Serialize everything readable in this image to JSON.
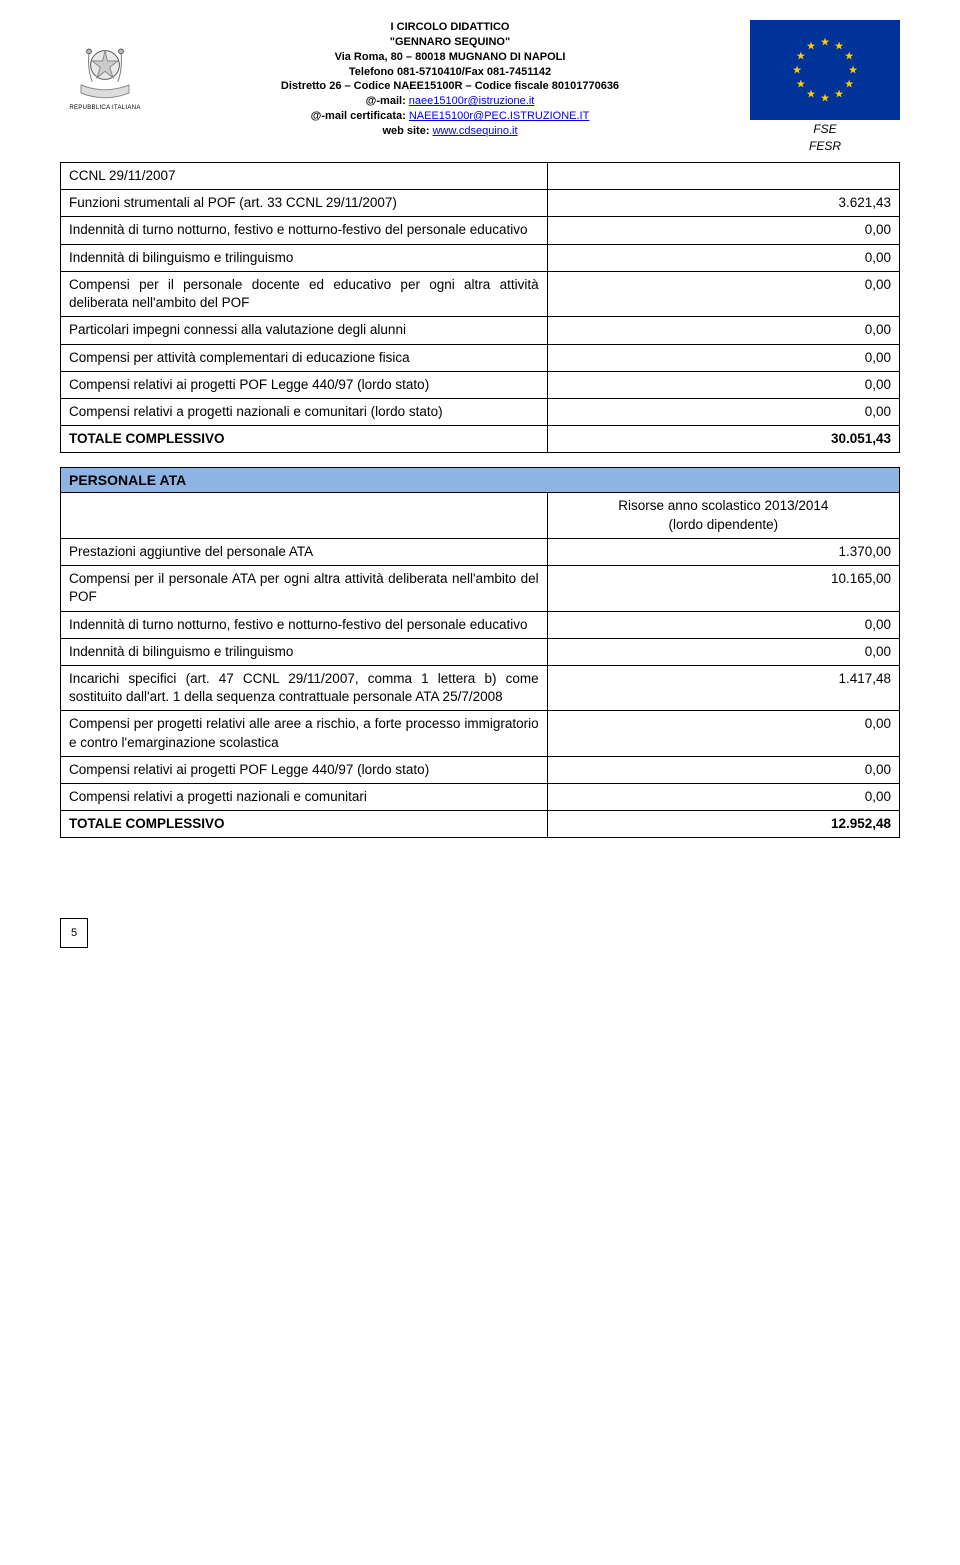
{
  "header": {
    "line1": "I CIRCOLO DIDATTICO",
    "line2": "\"GENNARO SEQUINO\"",
    "line3": "Via Roma, 80 – 80018 MUGNANO DI NAPOLI",
    "line4": "Telefono 081-5710410/Fax 081-7451142",
    "line5": "Distretto 26 – Codice NAEE15100R – Codice fiscale 80101770636",
    "mail_label": "@-mail: ",
    "mail_link": "naee15100r@istruzione.it",
    "mail_cert_label": "@-mail certificata: ",
    "mail_cert_link": "NAEE15100r@PEC.ISTRUZIONE.IT",
    "web_label": "web site: ",
    "web_link": "www.cdsequino.it",
    "fse1": "FSE",
    "fse2": "FESR",
    "emblem_text": "REPUBBLICA ITALIANA"
  },
  "table1": {
    "rows": [
      {
        "label": "CCNL 29/11/2007",
        "val": ""
      },
      {
        "label": "Funzioni strumentali al POF (art. 33 CCNL 29/11/2007)",
        "val": "3.621,43"
      },
      {
        "label": "Indennità di turno notturno, festivo e notturno-festivo del personale educativo",
        "val": "0,00"
      },
      {
        "label": "Indennità di bilinguismo e trilinguismo",
        "val": "0,00"
      },
      {
        "label": "Compensi per il personale docente ed educativo per ogni altra attività deliberata nell'ambito del POF",
        "val": "0,00"
      },
      {
        "label": "Particolari impegni connessi alla valutazione degli alunni",
        "val": "0,00"
      },
      {
        "label": "Compensi per attività complementari di educazione fisica",
        "val": "0,00"
      },
      {
        "label": "Compensi relativi ai progetti POF Legge 440/97 (lordo stato)",
        "val": "0,00"
      },
      {
        "label": "Compensi relativi a progetti nazionali e comunitari (lordo stato)",
        "val": "0,00"
      },
      {
        "label": "TOTALE COMPLESSIVO",
        "val": "30.051,43",
        "bold": true
      }
    ]
  },
  "section2": {
    "title": "PERSONALE ATA",
    "sub1": "Risorse anno scolastico 2013/2014",
    "sub2": "(lordo dipendente)",
    "rows": [
      {
        "label": "Prestazioni aggiuntive del personale ATA",
        "val": "1.370,00"
      },
      {
        "label": "Compensi per il personale ATA per ogni altra attività deliberata nell'ambito del POF",
        "val": "10.165,00"
      },
      {
        "label": "Indennità di turno notturno, festivo e notturno-festivo del personale educativo",
        "val": "0,00"
      },
      {
        "label": "Indennità di bilinguismo e trilinguismo",
        "val": "0,00"
      },
      {
        "label": "Incarichi specifici (art. 47 CCNL 29/11/2007, comma 1 lettera b) come sostituito dall'art. 1 della sequenza contrattuale personale ATA 25/7/2008",
        "val": "1.417,48"
      },
      {
        "label": "Compensi per progetti relativi alle aree a rischio, a forte processo immigratorio e contro l'emarginazione scolastica",
        "val": "0,00"
      },
      {
        "label": "Compensi relativi ai progetti POF Legge 440/97 (lordo stato)",
        "val": "0,00"
      },
      {
        "label": "Compensi relativi a progetti nazionali e comunitari",
        "val": "0,00"
      },
      {
        "label": "TOTALE COMPLESSIVO",
        "val": "12.952,48",
        "bold": true
      }
    ]
  },
  "page_number": "5",
  "colors": {
    "section_bg": "#8db4e2",
    "link": "#0000ee",
    "eu_blue": "#003399",
    "eu_gold": "#ffcc00"
  }
}
